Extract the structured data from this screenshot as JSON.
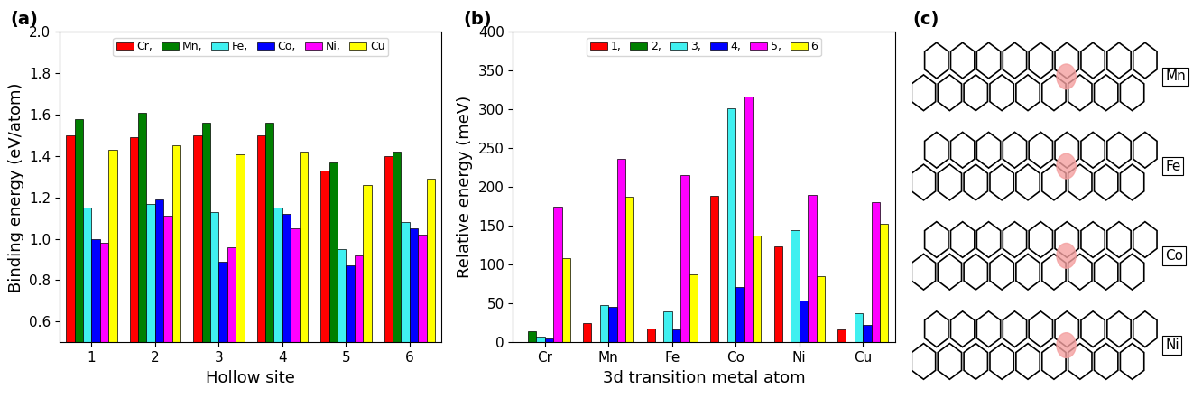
{
  "chart_data": [
    {
      "type": "bar",
      "title": "(a)",
      "x_label": "Hollow site",
      "y_label": "Binding energy (eV/atom)",
      "categories": [
        "1",
        "2",
        "3",
        "4",
        "5",
        "6"
      ],
      "series": [
        {
          "name": "Cr,",
          "color": "#ff0000",
          "values": [
            1.5,
            1.49,
            1.5,
            1.5,
            1.33,
            1.4
          ]
        },
        {
          "name": "Mn,",
          "color": "#008000",
          "values": [
            1.58,
            1.61,
            1.56,
            1.56,
            1.37,
            1.42
          ]
        },
        {
          "name": "Fe,",
          "color": "#40f0f0",
          "values": [
            1.15,
            1.17,
            1.13,
            1.15,
            0.95,
            1.08
          ]
        },
        {
          "name": "Co,",
          "color": "#0000ff",
          "values": [
            1.0,
            1.19,
            0.89,
            1.12,
            0.87,
            1.05
          ]
        },
        {
          "name": "Ni,",
          "color": "#ff00ff",
          "values": [
            0.98,
            1.11,
            0.96,
            1.05,
            0.92,
            1.02
          ]
        },
        {
          "name": "Cu",
          "color": "#ffff00",
          "values": [
            1.43,
            1.45,
            1.41,
            1.42,
            1.26,
            1.29
          ]
        }
      ],
      "ylim": [
        0.5,
        2.0
      ],
      "yticks": [
        0.6,
        0.8,
        1.0,
        1.2,
        1.4,
        1.6,
        1.8,
        2.0
      ],
      "legend": "upper center"
    },
    {
      "type": "bar",
      "title": "(b)",
      "x_label": "3d transition metal atom",
      "y_label": "Relative energy (meV)",
      "categories": [
        "Cr",
        "Mn",
        "Fe",
        "Co",
        "Ni",
        "Cu"
      ],
      "series": [
        {
          "name": "1,",
          "color": "#ff0000",
          "values": [
            0,
            25,
            18,
            189,
            124,
            17
          ]
        },
        {
          "name": "2,",
          "color": "#008000",
          "values": [
            14,
            0,
            0,
            0,
            0,
            0
          ]
        },
        {
          "name": "3,",
          "color": "#40f0f0",
          "values": [
            7,
            48,
            40,
            302,
            144,
            38
          ]
        },
        {
          "name": "4,",
          "color": "#0000ff",
          "values": [
            5,
            46,
            17,
            71,
            54,
            22
          ]
        },
        {
          "name": "5,",
          "color": "#ff00ff",
          "values": [
            175,
            236,
            215,
            317,
            190,
            181
          ]
        },
        {
          "name": "6",
          "color": "#ffff00",
          "values": [
            109,
            187,
            88,
            137,
            85,
            153
          ]
        }
      ],
      "ylim": [
        0,
        400
      ],
      "yticks": [
        0,
        50,
        100,
        150,
        200,
        250,
        300,
        350,
        400
      ],
      "legend": "upper center"
    }
  ],
  "structure_panel": {
    "title": "(c)",
    "labels": [
      "Mn",
      "Fe",
      "Co",
      "Ni"
    ]
  }
}
